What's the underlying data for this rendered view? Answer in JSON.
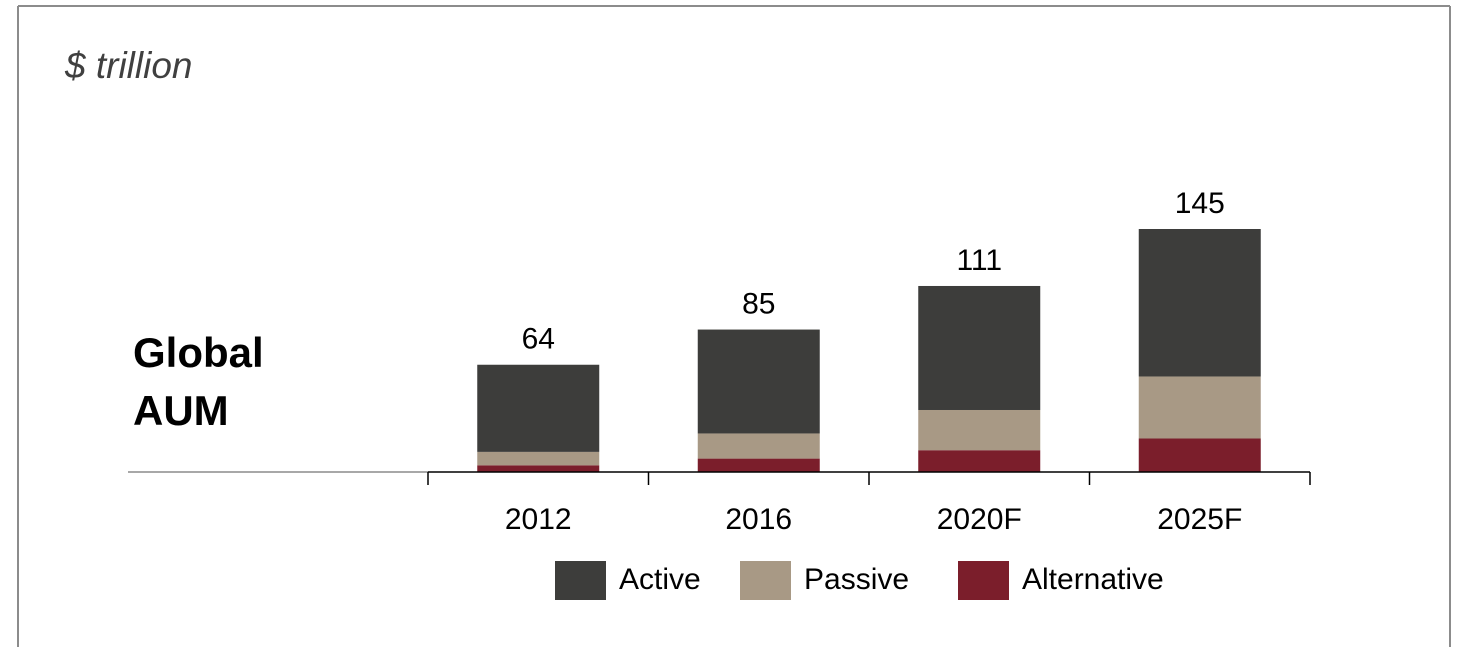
{
  "chart_data": {
    "type": "stacked_bar",
    "subtitle": "$ trillion",
    "label": [
      "Global",
      "AUM"
    ],
    "categories": [
      "2012",
      "2016",
      "2020F",
      "2025F"
    ],
    "series": [
      {
        "name": "Active",
        "color": "#3d3d3b",
        "values": [
          52,
          62,
          74,
          88
        ]
      },
      {
        "name": "Passive",
        "color": "#a89985",
        "values": [
          8,
          15,
          24,
          37
        ]
      },
      {
        "name": "Alternative",
        "color": "#7b1e2b",
        "values": [
          4,
          8,
          13,
          20
        ]
      }
    ],
    "totals": [
      64,
      85,
      111,
      145
    ],
    "legend": "bottom"
  }
}
